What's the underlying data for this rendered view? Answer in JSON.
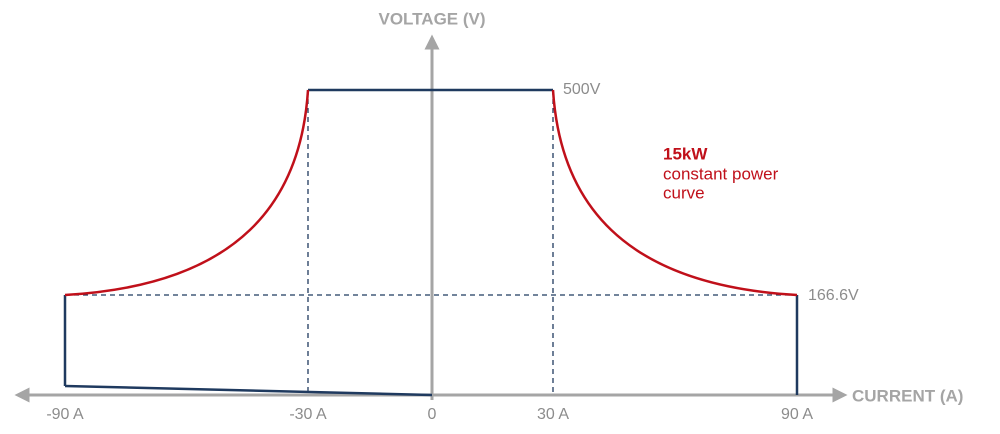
{
  "y_axis": {
    "title": "VOLTAGE (V)"
  },
  "x_axis": {
    "title": "CURRENT (A)",
    "ticks": [
      "-90 A",
      "-30 A",
      "0",
      "30 A",
      "90 A"
    ]
  },
  "voltage_labels": [
    "500V",
    "166.6V"
  ],
  "annotation": {
    "power": "15kW",
    "lines": [
      "constant power",
      "curve"
    ]
  }
}
